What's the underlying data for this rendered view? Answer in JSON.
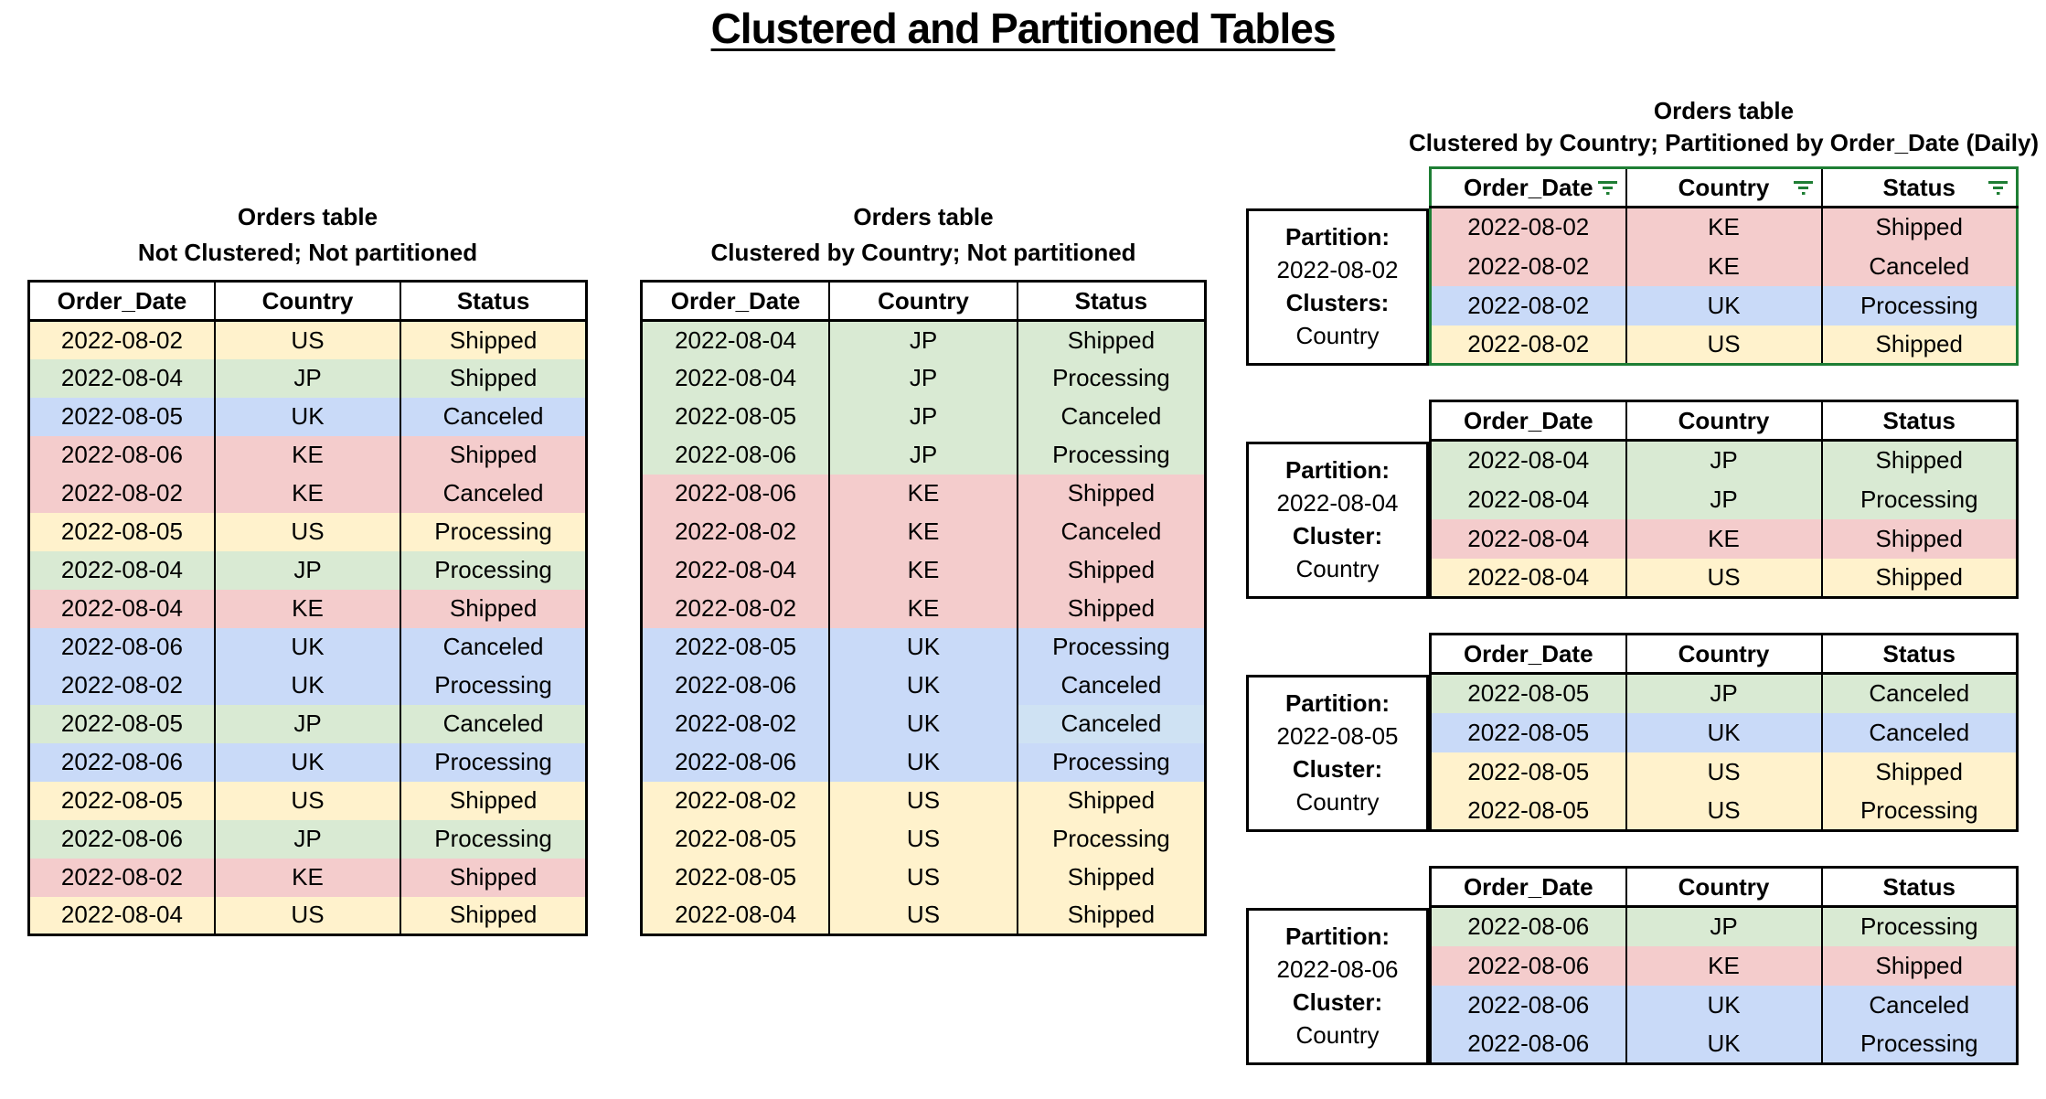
{
  "title": "Clustered and Partitioned Tables",
  "columns": [
    "Order_Date",
    "Country",
    "Status"
  ],
  "palette": {
    "yellow": "#fff2cc",
    "green": "#d9ead3",
    "blue": "#c9daf8",
    "blue_light": "#cfe2f3",
    "red": "#f4cccc",
    "accent_green": "#1e7e34",
    "border_black": "#000000"
  },
  "icons": {
    "header_filter": "filter-icon"
  },
  "left_table": {
    "title": "Orders table",
    "subtitle": "Not Clustered; Not partitioned",
    "rows": [
      [
        "2022-08-02",
        "US",
        "Shipped",
        "yellow"
      ],
      [
        "2022-08-04",
        "JP",
        "Shipped",
        "green"
      ],
      [
        "2022-08-05",
        "UK",
        "Canceled",
        "blue"
      ],
      [
        "2022-08-06",
        "KE",
        "Shipped",
        "red"
      ],
      [
        "2022-08-02",
        "KE",
        "Canceled",
        "red"
      ],
      [
        "2022-08-05",
        "US",
        "Processing",
        "yellow"
      ],
      [
        "2022-08-04",
        "JP",
        "Processing",
        "green"
      ],
      [
        "2022-08-04",
        "KE",
        "Shipped",
        "red"
      ],
      [
        "2022-08-06",
        "UK",
        "Canceled",
        "blue"
      ],
      [
        "2022-08-02",
        "UK",
        "Processing",
        "blue"
      ],
      [
        "2022-08-05",
        "JP",
        "Canceled",
        "green"
      ],
      [
        "2022-08-06",
        "UK",
        "Processing",
        "blue"
      ],
      [
        "2022-08-05",
        "US",
        "Shipped",
        "yellow"
      ],
      [
        "2022-08-06",
        "JP",
        "Processing",
        "green"
      ],
      [
        "2022-08-02",
        "KE",
        "Shipped",
        "red"
      ],
      [
        "2022-08-04",
        "US",
        "Shipped",
        "yellow"
      ]
    ]
  },
  "middle_table": {
    "title": "Orders table",
    "subtitle": "Clustered by Country; Not partitioned",
    "rows": [
      [
        "2022-08-04",
        "JP",
        "Shipped",
        "green"
      ],
      [
        "2022-08-04",
        "JP",
        "Processing",
        "green"
      ],
      [
        "2022-08-05",
        "JP",
        "Canceled",
        "green"
      ],
      [
        "2022-08-06",
        "JP",
        "Processing",
        "green"
      ],
      [
        "2022-08-06",
        "KE",
        "Shipped",
        "red"
      ],
      [
        "2022-08-02",
        "KE",
        "Canceled",
        "red"
      ],
      [
        "2022-08-04",
        "KE",
        "Shipped",
        "red"
      ],
      [
        "2022-08-02",
        "KE",
        "Shipped",
        "red"
      ],
      [
        "2022-08-05",
        "UK",
        "Processing",
        "blue"
      ],
      [
        "2022-08-06",
        "UK",
        "Canceled",
        "blue"
      ],
      [
        "2022-08-02",
        "UK",
        "Canceled",
        "blue",
        "blue_light"
      ],
      [
        "2022-08-06",
        "UK",
        "Processing",
        "blue"
      ],
      [
        "2022-08-02",
        "US",
        "Shipped",
        "yellow"
      ],
      [
        "2022-08-05",
        "US",
        "Processing",
        "yellow"
      ],
      [
        "2022-08-05",
        "US",
        "Shipped",
        "yellow"
      ],
      [
        "2022-08-04",
        "US",
        "Shipped",
        "yellow"
      ]
    ]
  },
  "right_section": {
    "title": "Orders table",
    "subtitle": "Clustered by Country; Partitioned by Order_Date (Daily)",
    "partitions": [
      {
        "partition_label": "Partition:",
        "partition_value": "2022-08-02",
        "cluster_label": "Clusters:",
        "cluster_value": "Country",
        "filtered": true,
        "rows": [
          [
            "2022-08-02",
            "KE",
            "Shipped",
            "red"
          ],
          [
            "2022-08-02",
            "KE",
            "Canceled",
            "red"
          ],
          [
            "2022-08-02",
            "UK",
            "Processing",
            "blue"
          ],
          [
            "2022-08-02",
            "US",
            "Shipped",
            "yellow"
          ]
        ]
      },
      {
        "partition_label": "Partition:",
        "partition_value": "2022-08-04",
        "cluster_label": "Cluster:",
        "cluster_value": "Country",
        "filtered": false,
        "rows": [
          [
            "2022-08-04",
            "JP",
            "Shipped",
            "green"
          ],
          [
            "2022-08-04",
            "JP",
            "Processing",
            "green"
          ],
          [
            "2022-08-04",
            "KE",
            "Shipped",
            "red"
          ],
          [
            "2022-08-04",
            "US",
            "Shipped",
            "yellow"
          ]
        ]
      },
      {
        "partition_label": "Partition:",
        "partition_value": "2022-08-05",
        "cluster_label": "Cluster:",
        "cluster_value": "Country",
        "filtered": false,
        "rows": [
          [
            "2022-08-05",
            "JP",
            "Canceled",
            "green"
          ],
          [
            "2022-08-05",
            "UK",
            "Canceled",
            "blue"
          ],
          [
            "2022-08-05",
            "US",
            "Shipped",
            "yellow"
          ],
          [
            "2022-08-05",
            "US",
            "Processing",
            "yellow"
          ]
        ]
      },
      {
        "partition_label": "Partition:",
        "partition_value": "2022-08-06",
        "cluster_label": "Cluster:",
        "cluster_value": "Country",
        "filtered": false,
        "rows": [
          [
            "2022-08-06",
            "JP",
            "Processing",
            "green"
          ],
          [
            "2022-08-06",
            "KE",
            "Shipped",
            "red"
          ],
          [
            "2022-08-06",
            "UK",
            "Canceled",
            "blue"
          ],
          [
            "2022-08-06",
            "UK",
            "Processing",
            "blue"
          ]
        ]
      }
    ]
  }
}
